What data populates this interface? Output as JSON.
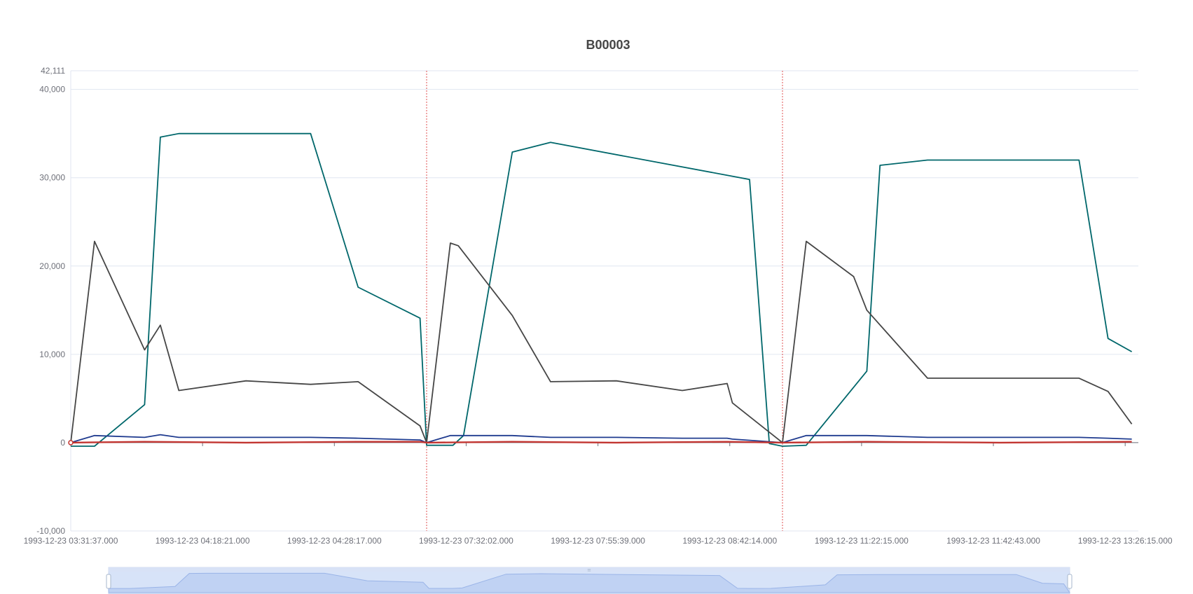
{
  "chart_data": {
    "type": "line",
    "title": "B00003",
    "xlabel": "",
    "ylabel": "",
    "ylim": [
      -10000,
      42111
    ],
    "y_ticks": [
      "-10,000",
      "0",
      "10,000",
      "20,000",
      "30,000",
      "40,000",
      "42,111"
    ],
    "y_tick_values": [
      -10000,
      0,
      10000,
      20000,
      30000,
      40000,
      42111
    ],
    "x_tick_labels": [
      "1993-12-23 03:31:37.000",
      "1993-12-23 04:18:21.000",
      "1993-12-23 04:28:17.000",
      "1993-12-23 07:32:02.000",
      "1993-12-23 07:55:39.000",
      "1993-12-23 08:42:14.000",
      "1993-12-23 11:22:15.000",
      "1993-12-23 11:42:43.000",
      "1993-12-23 13:26:15.000"
    ],
    "x_tick_positions": [
      0,
      10,
      20,
      30,
      40,
      50,
      60,
      70,
      80
    ],
    "x_range": [
      0,
      81
    ],
    "cycle_markers": [
      0,
      27,
      54
    ],
    "grid": true,
    "legend": "none",
    "series": [
      {
        "color": "#00676b",
        "x": [
          0,
          1.8,
          5.6,
          6.8,
          8.2,
          13.3,
          18.2,
          21.8,
          26.5,
          27,
          29,
          29.8,
          33.5,
          36.4,
          51.5,
          53,
          54,
          55.8,
          60.4,
          61.4,
          65,
          70.5,
          76.5,
          78.7,
          80.5
        ],
        "values": [
          -400,
          -400,
          4300,
          34600,
          35000,
          35000,
          35000,
          17600,
          14100,
          -300,
          -300,
          800,
          32900,
          34000,
          29800,
          -100,
          -400,
          -300,
          8100,
          31400,
          32000,
          32000,
          32000,
          11800,
          10300
        ]
      },
      {
        "color": "#464646",
        "x": [
          0,
          1.8,
          5.6,
          6.8,
          8.2,
          13.3,
          18.2,
          21.8,
          26.5,
          27,
          28.8,
          29.4,
          33.5,
          36.4,
          41.4,
          46.4,
          49.8,
          50.2,
          54,
          55.8,
          59.4,
          60.4,
          65,
          70.5,
          76.5,
          78.7,
          80.5
        ],
        "values": [
          0,
          22800,
          10500,
          13300,
          5900,
          7000,
          6600,
          6900,
          1900,
          0,
          22600,
          22300,
          14400,
          6900,
          7000,
          5900,
          6700,
          4500,
          0,
          22800,
          18800,
          15000,
          7300,
          7300,
          7300,
          5800,
          2100
        ]
      },
      {
        "color": "#1f3b8f",
        "x": [
          0,
          1.8,
          5.6,
          6.8,
          8.2,
          13.3,
          18.2,
          21.8,
          26.5,
          27,
          28.8,
          33.5,
          36.4,
          41.4,
          46.4,
          49.8,
          50.2,
          54,
          55.8,
          60.4,
          65,
          70.5,
          76.5,
          78.7,
          80.5
        ],
        "values": [
          0,
          800,
          600,
          900,
          600,
          600,
          600,
          500,
          300,
          0,
          800,
          800,
          600,
          600,
          500,
          500,
          400,
          0,
          800,
          800,
          600,
          600,
          600,
          500,
          400
        ]
      },
      {
        "color": "#c23531",
        "x": [
          0,
          5.6,
          13.3,
          21.8,
          26.5,
          27,
          33.5,
          41.4,
          49.8,
          54,
          60.4,
          70.5,
          80.5
        ],
        "values": [
          0,
          100,
          0,
          100,
          100,
          0,
          100,
          0,
          100,
          0,
          100,
          0,
          100
        ]
      }
    ],
    "datazoom": {
      "visible": true,
      "range_percent": [
        0,
        100
      ]
    }
  }
}
